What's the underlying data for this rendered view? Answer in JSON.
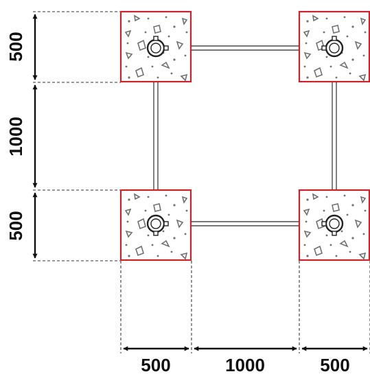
{
  "colors": {
    "frame": "#cc2229",
    "pipe": "#4a4a4a",
    "aggregate": "#707070",
    "dimension": "#111111",
    "extension": "#777777"
  },
  "icons": {
    "footing": "concrete-footing-icon",
    "pipe_fitting": "pipe-tee-fitting-icon"
  },
  "dimensions": {
    "left": {
      "top": "500",
      "middle": "1000",
      "bottom": "500"
    },
    "bottom": {
      "left": "500",
      "middle": "1000",
      "right": "500"
    }
  }
}
